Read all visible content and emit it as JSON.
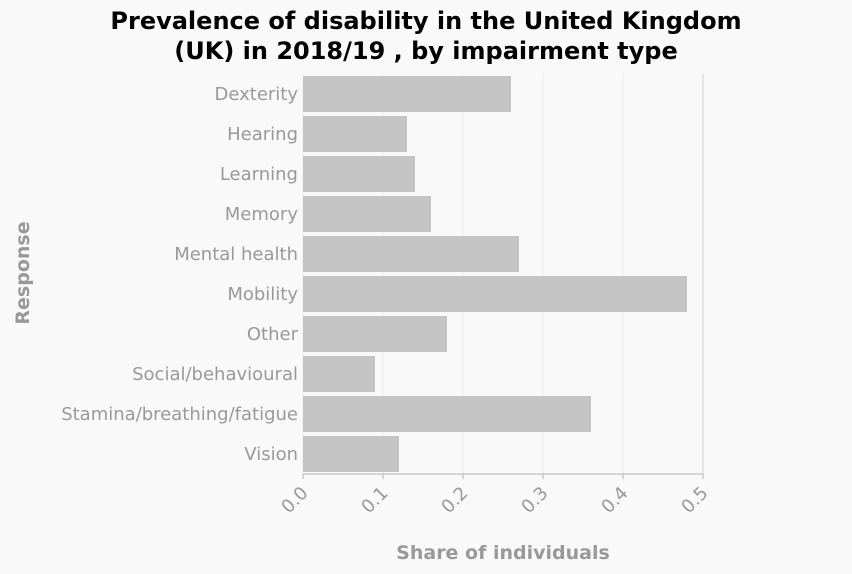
{
  "chart_data": {
    "type": "bar",
    "orientation": "horizontal",
    "title_line1": "Prevalence of disability in the United Kingdom",
    "title_line2": "(UK) in 2018/19 , by impairment type",
    "xlabel": "Share of individuals",
    "ylabel": "Response",
    "xlim": [
      0,
      0.5
    ],
    "xticks": [
      "0.0",
      "0.1",
      "0.2",
      "0.3",
      "0.4",
      "0.5"
    ],
    "grid": true,
    "bar_color": "#c4c4c4",
    "categories": [
      "Dexterity",
      "Hearing",
      "Learning",
      "Memory",
      "Mental health",
      "Mobility",
      "Other",
      "Social/behavioural",
      "Stamina/breathing/fatigue",
      "Vision"
    ],
    "values": [
      0.26,
      0.13,
      0.14,
      0.16,
      0.27,
      0.48,
      0.18,
      0.09,
      0.36,
      0.12
    ]
  }
}
